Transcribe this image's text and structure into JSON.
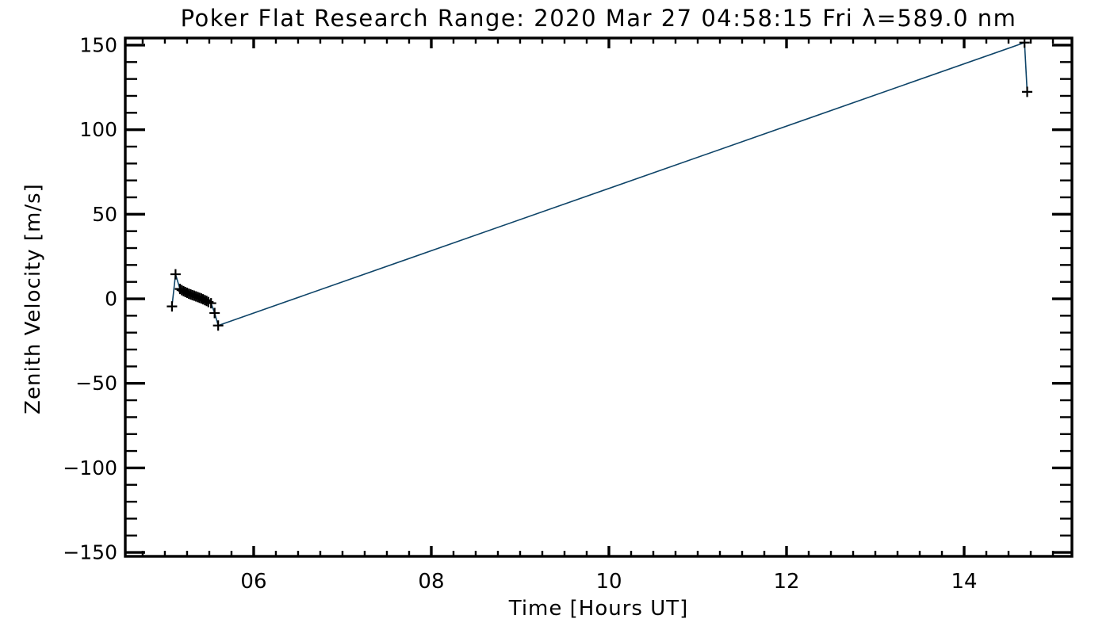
{
  "window": {
    "background": "#ffffff",
    "foreground": "#000000"
  },
  "chart_data": {
    "type": "line",
    "title": "Poker Flat Research Range: 2020 Mar 27 04:58:15 Fri λ=589.0 nm",
    "xlabel": "Time [Hours UT]",
    "ylabel": "Zenith Velocity [m/s]",
    "xlim": [
      4.554,
      15.214
    ],
    "ylim": [
      -152.3,
      154.2
    ],
    "x_major_ticks": [
      6,
      8,
      10,
      12,
      14
    ],
    "x_tick_labels": [
      "06",
      "08",
      "10",
      "12",
      "14"
    ],
    "x_minor_interval": 0.25,
    "y_major_ticks": [
      150,
      100,
      50,
      0,
      -50,
      -100,
      -150
    ],
    "y_tick_labels": [
      "150",
      "100",
      "50",
      "0",
      "−50",
      "−100",
      "−150"
    ],
    "y_minor_interval": 10,
    "grid": false,
    "legend": null,
    "line_color": "#0e4468",
    "marker": "plus",
    "marker_color": "#000000",
    "series": [
      {
        "name": "Zenith Velocity",
        "points": [
          [
            5.08,
            -4.5
          ],
          [
            5.12,
            14.5
          ],
          [
            5.17,
            5.8
          ],
          [
            5.19,
            5.1
          ],
          [
            5.21,
            4.5
          ],
          [
            5.23,
            4.0
          ],
          [
            5.25,
            3.5
          ],
          [
            5.27,
            3.0
          ],
          [
            5.29,
            2.6
          ],
          [
            5.31,
            2.2
          ],
          [
            5.33,
            1.8
          ],
          [
            5.35,
            1.4
          ],
          [
            5.37,
            1.0
          ],
          [
            5.39,
            0.6
          ],
          [
            5.41,
            0.2
          ],
          [
            5.43,
            -0.3
          ],
          [
            5.45,
            -0.8
          ],
          [
            5.47,
            -1.3
          ],
          [
            5.49,
            -1.9
          ],
          [
            5.52,
            -2.6
          ],
          [
            5.56,
            -8.4
          ],
          [
            5.6,
            -15.8
          ],
          [
            14.68,
            151.5
          ],
          [
            14.71,
            122.4
          ]
        ]
      }
    ]
  }
}
